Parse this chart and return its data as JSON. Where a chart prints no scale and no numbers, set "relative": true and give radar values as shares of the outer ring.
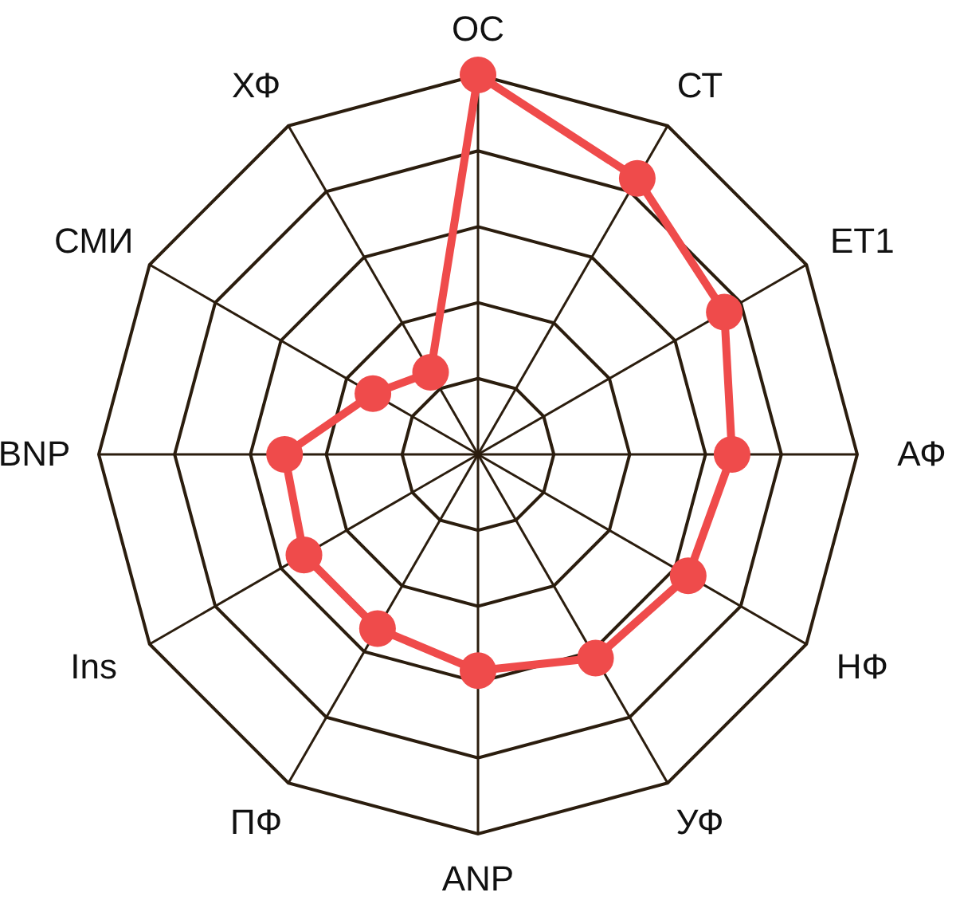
{
  "chart_data": {
    "type": "radar",
    "relative": true,
    "grid": true,
    "marker": "circle",
    "line_style": "solid",
    "categories": [
      "ОС",
      "СТ",
      "ЕТ1",
      "АФ",
      "НФ",
      "УФ",
      "ANP",
      "ПФ",
      "Ins",
      "BNP",
      "СМИ",
      "ХФ"
    ],
    "series": [
      {
        "color": "#ef4b4b",
        "values": [
          1.0,
          0.84,
          0.75,
          0.67,
          0.64,
          0.62,
          0.57,
          0.53,
          0.53,
          0.51,
          0.32,
          0.25
        ]
      }
    ]
  }
}
